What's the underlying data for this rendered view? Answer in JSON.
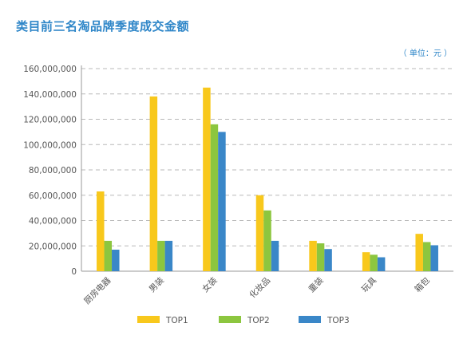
{
  "chart_data": {
    "type": "bar",
    "title": "类目前三名淘品牌季度成交金额",
    "unit_note": "（ 单位：元 ）",
    "categories": [
      "厨房电器",
      "男装",
      "女装",
      "化妆品",
      "童装",
      "玩具",
      "箱包"
    ],
    "series": [
      {
        "name": "TOP1",
        "color": "#f8c81c",
        "values": [
          63000000,
          138000000,
          145000000,
          60000000,
          24000000,
          15000000,
          29500000
        ]
      },
      {
        "name": "TOP2",
        "color": "#8cc63f",
        "values": [
          24000000,
          24000000,
          116000000,
          48000000,
          22000000,
          13000000,
          23000000
        ]
      },
      {
        "name": "TOP3",
        "color": "#3a87c8",
        "values": [
          17000000,
          24000000,
          110000000,
          24000000,
          17500000,
          11000000,
          20500000
        ]
      }
    ],
    "yticks": [
      "0",
      "20,000,000",
      "40,000,000",
      "60,000,000",
      "80,000,000",
      "100,000,000",
      "120,000,000",
      "140,000,000",
      "160,000,000"
    ],
    "ylim": [
      0,
      160000000
    ],
    "grid": true,
    "grid_style": "dashed",
    "legend_position": "bottom"
  }
}
